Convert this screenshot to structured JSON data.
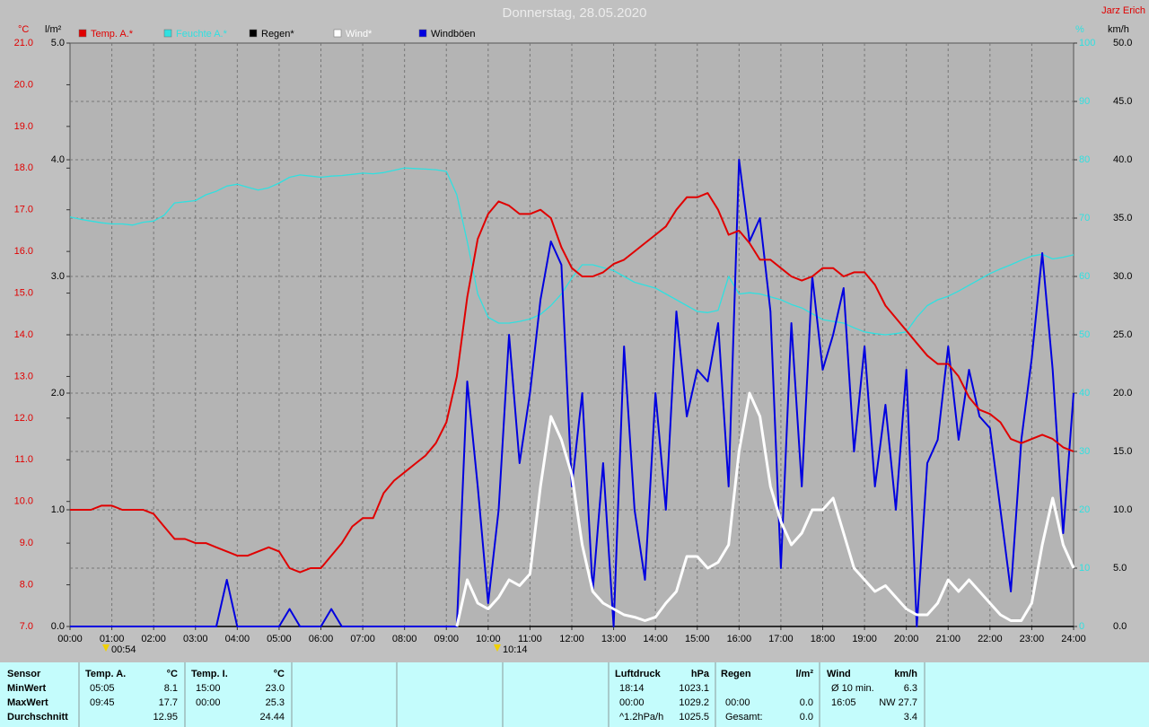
{
  "chart_data": {
    "type": "line",
    "title": "Donnerstag, 28.05.2020",
    "author": "Jarz Erich",
    "units": {
      "y": "°C",
      "y2": "l/m²",
      "y3": "%",
      "y4": "km/h"
    },
    "annotations": [
      "00:54",
      "10:14"
    ],
    "x": [
      0,
      0.25,
      0.5,
      0.75,
      1,
      1.25,
      1.5,
      1.75,
      2,
      2.25,
      2.5,
      2.75,
      3,
      3.25,
      3.5,
      3.75,
      4,
      4.25,
      4.5,
      4.75,
      5,
      5.25,
      5.5,
      5.75,
      6,
      6.25,
      6.5,
      6.75,
      7,
      7.25,
      7.5,
      7.75,
      8,
      8.25,
      8.5,
      8.75,
      9,
      9.25,
      9.5,
      9.75,
      10,
      10.25,
      10.5,
      10.75,
      11,
      11.25,
      11.5,
      11.75,
      12,
      12.25,
      12.5,
      12.75,
      13,
      13.25,
      13.5,
      13.75,
      14,
      14.25,
      14.5,
      14.75,
      15,
      15.25,
      15.5,
      15.75,
      16,
      16.25,
      16.5,
      16.75,
      17,
      17.25,
      17.5,
      17.75,
      18,
      18.25,
      18.5,
      18.75,
      19,
      19.25,
      19.5,
      19.75,
      20,
      20.25,
      20.5,
      20.75,
      21,
      21.25,
      21.5,
      21.75,
      22,
      22.25,
      22.5,
      22.75,
      23,
      23.25,
      23.5,
      23.75,
      24
    ],
    "xlim": [
      0,
      24
    ],
    "xticks": [
      {
        "value": 0,
        "label": "00:00"
      },
      {
        "value": 1,
        "label": "01:00"
      },
      {
        "value": 2,
        "label": "02:00"
      },
      {
        "value": 3,
        "label": "03:00"
      },
      {
        "value": 4,
        "label": "04:00"
      },
      {
        "value": 5,
        "label": "05:00"
      },
      {
        "value": 6,
        "label": "06:00"
      },
      {
        "value": 7,
        "label": "07:00"
      },
      {
        "value": 8,
        "label": "08:00"
      },
      {
        "value": 9,
        "label": "09:00"
      },
      {
        "value": 10,
        "label": "10:00"
      },
      {
        "value": 11,
        "label": "11:00"
      },
      {
        "value": 12,
        "label": "12:00"
      },
      {
        "value": 13,
        "label": "13:00"
      },
      {
        "value": 14,
        "label": "14:00"
      },
      {
        "value": 15,
        "label": "15:00"
      },
      {
        "value": 16,
        "label": "16:00"
      },
      {
        "value": 17,
        "label": "17:00"
      },
      {
        "value": 18,
        "label": "18:00"
      },
      {
        "value": 19,
        "label": "19:00"
      },
      {
        "value": 20,
        "label": "20:00"
      },
      {
        "value": 21,
        "label": "21:00"
      },
      {
        "value": 22,
        "label": "22:00"
      },
      {
        "value": 23,
        "label": "23:00"
      },
      {
        "value": 24,
        "label": "24:00"
      }
    ],
    "ylim": [
      7,
      21
    ],
    "yticks": [
      {
        "value": 7,
        "label": "7.0"
      },
      {
        "value": 8,
        "label": "8.0"
      },
      {
        "value": 9,
        "label": "9.0"
      },
      {
        "value": 10,
        "label": "10.0"
      },
      {
        "value": 11,
        "label": "11.0"
      },
      {
        "value": 12,
        "label": "12.0"
      },
      {
        "value": 13,
        "label": "13.0"
      },
      {
        "value": 14,
        "label": "14.0"
      },
      {
        "value": 15,
        "label": "15.0"
      },
      {
        "value": 16,
        "label": "16.0"
      },
      {
        "value": 17,
        "label": "17.0"
      },
      {
        "value": 18,
        "label": "18.0"
      },
      {
        "value": 19,
        "label": "19.0"
      },
      {
        "value": 20,
        "label": "20.0"
      },
      {
        "value": 21,
        "label": "21.0"
      }
    ],
    "y2lim": [
      0,
      5
    ],
    "y2ticks": [
      {
        "value": 0,
        "label": "0.0"
      },
      {
        "value": 1,
        "label": "1.0"
      },
      {
        "value": 2,
        "label": "2.0"
      },
      {
        "value": 3,
        "label": "3.0"
      },
      {
        "value": 4,
        "label": "4.0"
      },
      {
        "value": 5,
        "label": "5.0"
      }
    ],
    "y3lim": [
      0,
      100
    ],
    "y3ticks": [
      0,
      10,
      20,
      30,
      40,
      50,
      60,
      70,
      80,
      90,
      100
    ],
    "y4lim": [
      0,
      50
    ],
    "y4ticks": [
      {
        "value": 0,
        "label": "0.0"
      },
      {
        "value": 5,
        "label": "5.0"
      },
      {
        "value": 10,
        "label": "10.0"
      },
      {
        "value": 15,
        "label": "15.0"
      },
      {
        "value": 20,
        "label": "20.0"
      },
      {
        "value": 25,
        "label": "25.0"
      },
      {
        "value": 30,
        "label": "30.0"
      },
      {
        "value": 35,
        "label": "35.0"
      },
      {
        "value": 40,
        "label": "40.0"
      },
      {
        "value": 45,
        "label": "45.0"
      },
      {
        "value": 50,
        "label": "50.0"
      }
    ],
    "grid": true,
    "series": [
      {
        "name": "Temp. A.*",
        "color": "#e00000",
        "axis": "y",
        "values": [
          9.8,
          9.8,
          9.8,
          9.9,
          9.9,
          9.8,
          9.8,
          9.8,
          9.7,
          9.4,
          9.1,
          9.1,
          9.0,
          9.0,
          8.9,
          8.8,
          8.7,
          8.7,
          8.8,
          8.9,
          8.8,
          8.4,
          8.3,
          8.4,
          8.4,
          8.7,
          9.0,
          9.4,
          9.6,
          9.6,
          10.2,
          10.5,
          10.7,
          10.9,
          11.1,
          11.4,
          11.9,
          13.0,
          14.9,
          16.3,
          16.9,
          17.2,
          17.1,
          16.9,
          16.9,
          17.0,
          16.8,
          16.1,
          15.6,
          15.4,
          15.4,
          15.5,
          15.7,
          15.8,
          16.0,
          16.2,
          16.4,
          16.6,
          17.0,
          17.3,
          17.3,
          17.4,
          17.0,
          16.4,
          16.5,
          16.2,
          15.8,
          15.8,
          15.6,
          15.4,
          15.3,
          15.4,
          15.6,
          15.6,
          15.4,
          15.5,
          15.5,
          15.2,
          14.7,
          14.4,
          14.1,
          13.8,
          13.5,
          13.3,
          13.3,
          13.0,
          12.5,
          12.2,
          12.1,
          11.9,
          11.5,
          11.4,
          11.5,
          11.6,
          11.5,
          11.3,
          11.2
        ]
      },
      {
        "name": "Feuchte A.*",
        "color": "#30e0e0",
        "axis": "y3",
        "values": [
          70.2,
          69.8,
          69.5,
          69.2,
          69,
          69,
          68.8,
          69.3,
          69.5,
          70.5,
          72.6,
          72.8,
          73,
          74,
          74.6,
          75.5,
          75.8,
          75.3,
          74.8,
          75.2,
          76,
          77,
          77.4,
          77.2,
          77,
          77.2,
          77.3,
          77.5,
          77.7,
          77.6,
          77.8,
          78.2,
          78.6,
          78.5,
          78.4,
          78.3,
          78,
          74,
          66,
          57,
          53,
          52,
          52,
          52.3,
          52.7,
          53.5,
          55,
          57,
          59.7,
          62,
          62,
          61.5,
          61,
          60,
          59,
          58.5,
          58,
          57,
          56,
          55,
          54,
          53.8,
          54.2,
          60,
          57,
          57.2,
          57,
          56.5,
          56,
          55.2,
          54.6,
          53.6,
          52.6,
          52.3,
          52,
          51.2,
          50.5,
          50.2,
          50,
          50.2,
          50.5,
          53,
          55,
          56,
          56.6,
          57.5,
          58.5,
          59.5,
          60.5,
          61.3,
          62,
          62.8,
          63.5,
          63.8,
          63,
          63.3,
          63.7
        ]
      },
      {
        "name": "Regen*",
        "color": "#000000",
        "axis": "y2",
        "values": [
          0,
          0,
          0,
          0,
          0,
          0,
          0,
          0,
          0,
          0,
          0,
          0,
          0,
          0,
          0,
          0,
          0,
          0,
          0,
          0,
          0,
          0,
          0,
          0,
          0,
          0,
          0,
          0,
          0,
          0,
          0,
          0,
          0,
          0,
          0,
          0,
          0,
          0,
          0,
          0,
          0,
          0,
          0,
          0,
          0,
          0,
          0,
          0,
          0,
          0,
          0,
          0,
          0,
          0,
          0,
          0,
          0,
          0,
          0,
          0,
          0,
          0,
          0,
          0,
          0,
          0,
          0,
          0,
          0,
          0,
          0,
          0,
          0,
          0,
          0,
          0,
          0,
          0,
          0,
          0,
          0,
          0,
          0,
          0,
          0,
          0,
          0,
          0,
          0,
          0,
          0,
          0,
          0,
          0,
          0,
          0,
          0
        ]
      },
      {
        "name": "Wind*",
        "color": "#ffffff",
        "axis": "y4",
        "values": [
          null,
          null,
          null,
          null,
          null,
          null,
          null,
          null,
          null,
          null,
          null,
          null,
          null,
          null,
          null,
          null,
          null,
          null,
          null,
          null,
          null,
          null,
          null,
          null,
          null,
          null,
          null,
          null,
          null,
          null,
          null,
          null,
          null,
          null,
          null,
          null,
          null,
          0,
          4,
          2,
          1.5,
          2.5,
          4,
          3.5,
          4.5,
          12,
          18,
          16,
          13,
          7,
          3,
          2,
          1.5,
          1,
          0.8,
          0.5,
          0.8,
          2,
          3,
          6,
          6,
          5,
          5.5,
          7,
          15,
          20,
          18,
          12,
          9,
          7,
          8,
          10,
          10,
          11,
          8,
          5,
          4,
          3,
          3.5,
          2.5,
          1.5,
          1,
          1,
          2,
          4,
          3,
          4,
          3,
          2,
          1,
          0.5,
          0.5,
          2,
          7,
          11,
          7,
          5
        ]
      },
      {
        "name": "Windböen",
        "color": "#0000e0",
        "axis": "y4",
        "values": [
          0,
          0,
          0,
          0,
          0,
          0,
          0,
          0,
          0,
          0,
          0,
          0,
          0,
          0,
          0,
          4,
          0,
          0,
          0,
          0,
          0,
          1.5,
          0,
          0,
          0,
          1.5,
          0,
          0,
          0,
          0,
          0,
          0,
          0,
          0,
          0,
          0,
          0,
          0,
          21,
          12,
          2,
          10,
          25,
          14,
          20,
          28,
          33,
          31,
          12,
          20,
          3,
          14,
          0,
          24,
          10,
          4,
          20,
          10,
          27,
          18,
          22,
          21,
          26,
          12,
          40,
          33,
          35,
          27,
          5,
          26,
          12,
          30,
          22,
          25,
          29,
          15,
          24,
          12,
          19,
          10,
          22,
          0,
          14,
          16,
          24,
          16,
          22,
          18,
          17,
          10,
          3,
          16,
          23,
          32,
          22,
          8,
          20
        ]
      }
    ]
  },
  "table": {
    "row_labels": [
      "Sensor",
      "MinWert",
      "MaxWert",
      "Durchschnitt"
    ],
    "sections": [
      {
        "name": "Temp. A.",
        "unit": "°C",
        "rows": [
          {
            "time": "05:05",
            "value": "8.1"
          },
          {
            "time": "09:45",
            "value": "17.7"
          },
          {
            "value": "12.95"
          }
        ]
      },
      {
        "name": "Temp. I.",
        "unit": "°C",
        "rows": [
          {
            "time": "15:00",
            "value": "23.0"
          },
          {
            "time": "00:00",
            "value": "25.3"
          },
          {
            "value": "24.44"
          }
        ]
      },
      {
        "name": "Luftdruck",
        "unit": "hPa",
        "rows": [
          {
            "time": "18:14",
            "value": "1023.1"
          },
          {
            "time": "00:00",
            "value": "1029.2"
          },
          {
            "time": "^1.2hPa/h",
            "value": "1025.5"
          }
        ]
      },
      {
        "name": "Regen",
        "unit": "l/m²",
        "rows": [
          null,
          {
            "time": "00:00",
            "value": "0.0"
          },
          {
            "time": "Gesamt:",
            "value": "0.0"
          }
        ]
      },
      {
        "name": "Wind",
        "unit": "km/h",
        "rows": [
          {
            "time": "Ø 10 min.",
            "value": "6.3"
          },
          {
            "time": "16:05",
            "value": "NW 27.7"
          },
          {
            "value": "3.4"
          }
        ]
      }
    ]
  }
}
